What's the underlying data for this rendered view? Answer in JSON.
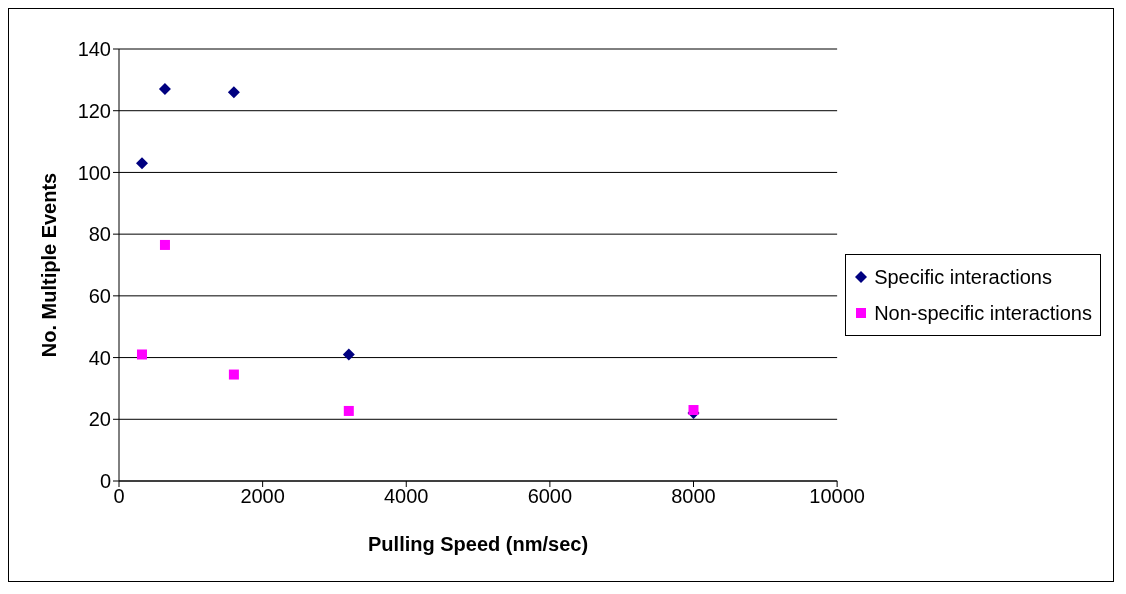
{
  "chart_data": {
    "type": "scatter",
    "xlabel": "Pulling Speed (nm/sec)",
    "ylabel": "No. Multiple Events",
    "x": [
      320,
      640,
      1600,
      3200,
      8000
    ],
    "series": [
      {
        "name": "Specific interactions",
        "color": "#000080",
        "marker": "diamond",
        "values": [
          103,
          127,
          126,
          41,
          22
        ]
      },
      {
        "name": "Non-specific interactions",
        "color": "#ff00ff",
        "marker": "square",
        "values": [
          41,
          76.5,
          34.5,
          22.7,
          23
        ]
      }
    ],
    "xlim": [
      0,
      10000
    ],
    "xticks": [
      0,
      2000,
      4000,
      6000,
      8000,
      10000
    ],
    "ylim": [
      0,
      140
    ],
    "yticks": [
      0,
      20,
      40,
      60,
      80,
      100,
      120,
      140
    ],
    "grid": "y",
    "legend": "right"
  }
}
